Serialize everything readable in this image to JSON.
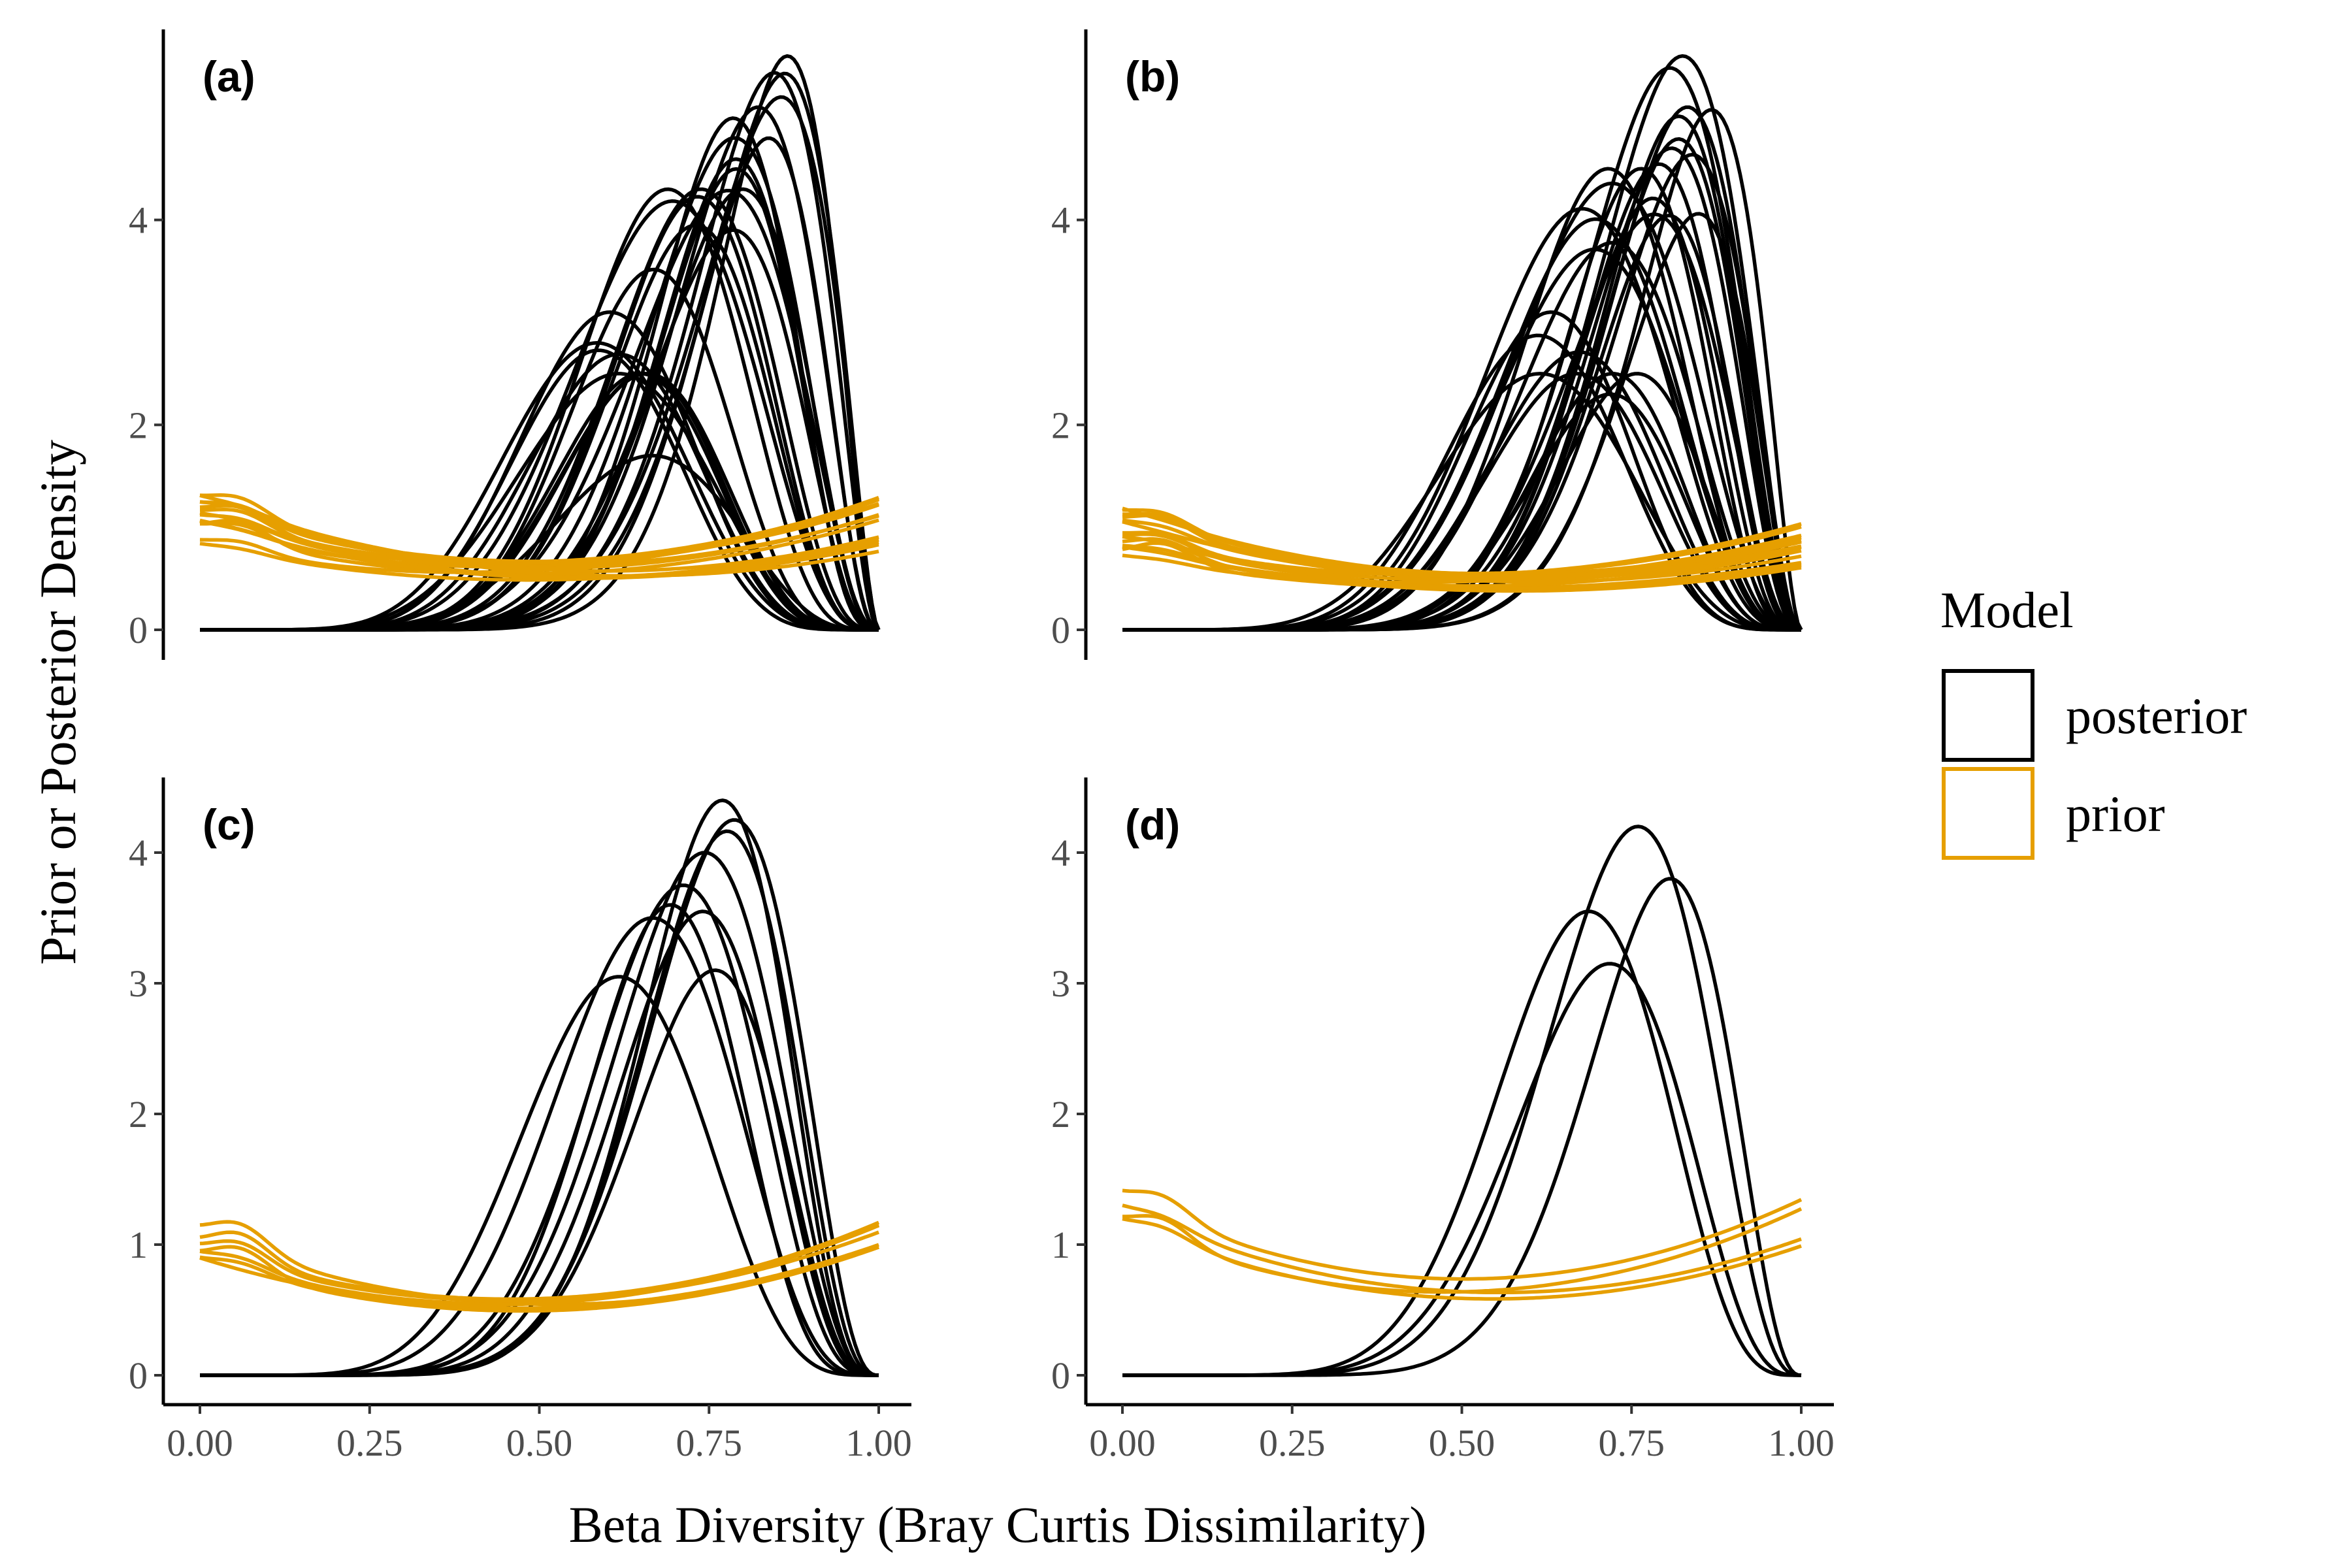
{
  "chart_data": {
    "type": "line",
    "xlabel": "Beta Diversity (Bray Curtis Dissimilarity)",
    "ylabel": "Prior or Posterior Density",
    "xlim": [
      0,
      1
    ],
    "x_ticks": [
      "0.00",
      "0.25",
      "0.50",
      "0.75",
      "1.00"
    ],
    "grid": false,
    "legend": {
      "title": "Model",
      "placement": "right",
      "entries": [
        {
          "name": "posterior",
          "color": "#000000"
        },
        {
          "name": "prior",
          "color": "#E69F00"
        }
      ]
    },
    "colors": {
      "posterior": "#000000",
      "prior": "#E69F00"
    },
    "panels": [
      {
        "label": "(a)",
        "ylim": [
          0,
          5.7
        ],
        "y_ticks": [
          0,
          2,
          4
        ],
        "posterior_count": 28,
        "posterior_examples": [
          {
            "mode": 0.92,
            "peak": 5.6
          },
          {
            "mode": 0.88,
            "peak": 5.1
          },
          {
            "mode": 0.84,
            "peak": 4.8
          },
          {
            "mode": 0.72,
            "peak": 4.3
          },
          {
            "mode": 0.78,
            "peak": 4.3
          },
          {
            "mode": 0.62,
            "peak": 3.1
          },
          {
            "mode": 0.6,
            "peak": 2.8
          },
          {
            "mode": 0.7,
            "peak": 1.7
          }
        ],
        "prior_count": 14,
        "prior_density_range_at_0": [
          0.8,
          1.3
        ],
        "prior_density_range_at_1": [
          0.7,
          1.3
        ]
      },
      {
        "label": "(b)",
        "ylim": [
          0,
          5.7
        ],
        "y_ticks": [
          0,
          2,
          4
        ],
        "posterior_count": 28,
        "posterior_examples": [
          {
            "mode": 0.89,
            "peak": 5.6
          },
          {
            "mode": 0.89,
            "peak": 5.1
          },
          {
            "mode": 0.86,
            "peak": 4.7
          },
          {
            "mode": 0.75,
            "peak": 4.5
          },
          {
            "mode": 0.8,
            "peak": 4.5
          },
          {
            "mode": 0.65,
            "peak": 3.1
          },
          {
            "mode": 0.75,
            "peak": 2.3
          }
        ],
        "prior_count": 14,
        "prior_density_range_at_0": [
          0.7,
          1.2
        ],
        "prior_density_range_at_1": [
          0.6,
          1.1
        ]
      },
      {
        "label": "(c)",
        "ylim": [
          0,
          4.5
        ],
        "y_ticks": [
          0,
          1,
          2,
          3,
          4
        ],
        "posterior_count": 10,
        "posterior_examples": [
          {
            "mode": 0.81,
            "peak": 4.4
          },
          {
            "mode": 0.84,
            "peak": 4.25
          },
          {
            "mode": 0.79,
            "peak": 4.0
          },
          {
            "mode": 0.75,
            "peak": 3.75
          },
          {
            "mode": 0.72,
            "peak": 3.6
          },
          {
            "mode": 0.7,
            "peak": 3.5
          },
          {
            "mode": 0.78,
            "peak": 3.55
          },
          {
            "mode": 0.8,
            "peak": 3.1
          },
          {
            "mode": 0.64,
            "peak": 3.05
          }
        ],
        "prior_count": 7,
        "prior_density_range_at_0": [
          0.85,
          1.1
        ],
        "prior_density_range_at_1": [
          0.8,
          1.2
        ]
      },
      {
        "label": "(d)",
        "ylim": [
          0,
          4.5
        ],
        "y_ticks": [
          0,
          1,
          2,
          3,
          4
        ],
        "posterior_count": 4,
        "posterior_examples": [
          {
            "mode": 0.81,
            "peak": 4.2
          },
          {
            "mode": 0.86,
            "peak": 3.8
          },
          {
            "mode": 0.72,
            "peak": 3.55
          },
          {
            "mode": 0.76,
            "peak": 3.15
          }
        ],
        "prior_count": 4,
        "prior_density_range_at_0": [
          0.95,
          1.45
        ],
        "prior_density_range_at_1": [
          0.95,
          1.35
        ]
      }
    ]
  }
}
